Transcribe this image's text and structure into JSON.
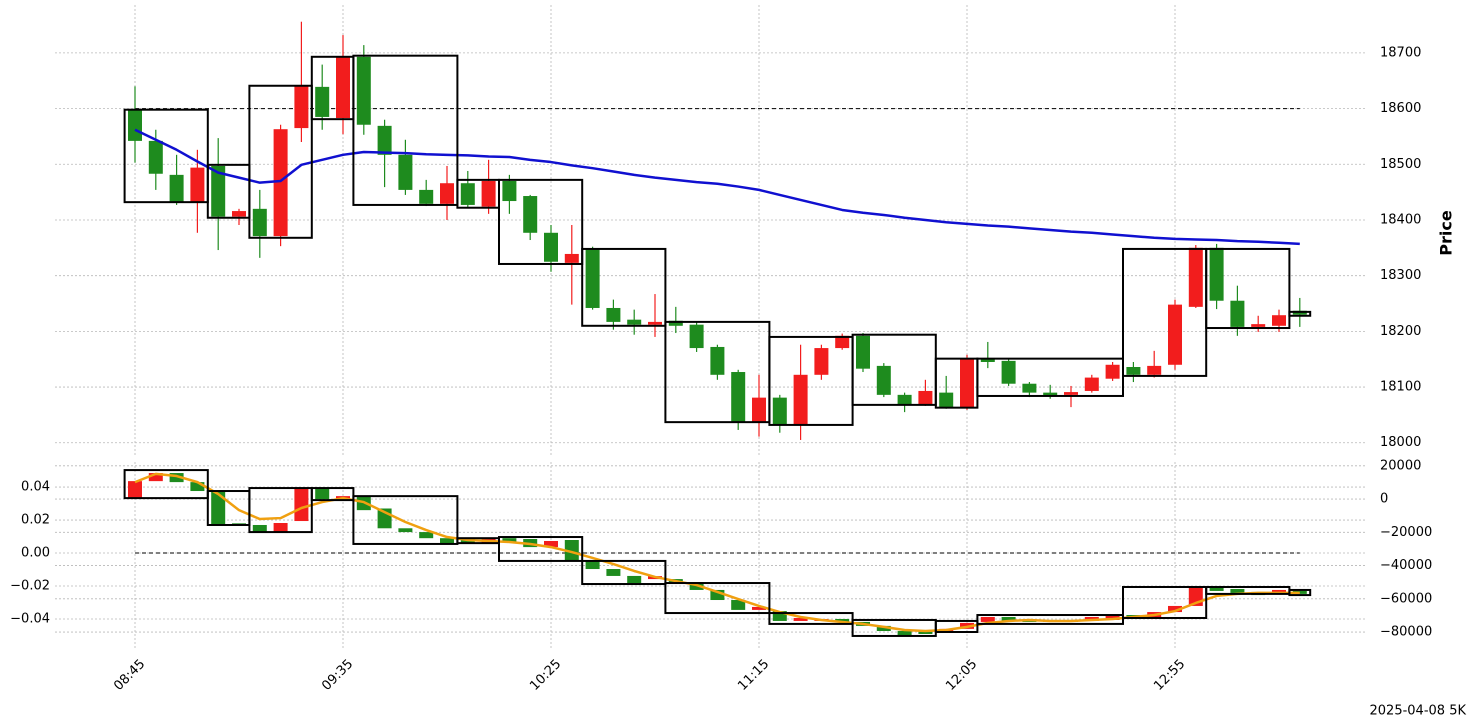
{
  "chart_data": [
    {
      "type": "candlestick",
      "ylabel": "Price",
      "up_color": "#f21d1d",
      "down_color": "#1e8b1e",
      "ylim": [
        17978,
        18786
      ],
      "yticks": [
        18000,
        18100,
        18200,
        18300,
        18400,
        18500,
        18600,
        18700
      ],
      "grid": true,
      "open": [
        18598,
        18542,
        18481,
        18432,
        18497,
        18406,
        18420,
        18371,
        18565,
        18639,
        18583,
        18693,
        18569,
        18517,
        18454,
        18429,
        18466,
        18424,
        18470,
        18443,
        18377,
        18323,
        18348,
        18242,
        18221,
        18212,
        18219,
        18212,
        18172,
        18127,
        18038,
        18081,
        18032,
        18122,
        18170,
        18192,
        18138,
        18086,
        18068,
        18090,
        18064,
        18152,
        18147,
        18106,
        18090,
        18086,
        18093,
        18115,
        18136,
        18122,
        18140,
        18244,
        18350,
        18255,
        18208,
        18210,
        18237
      ],
      "high": [
        18640,
        18562,
        18517,
        18526,
        18547,
        18420,
        18454,
        18571,
        18756,
        18679,
        18732,
        18714,
        18580,
        18544,
        18472,
        18497,
        18488,
        18508,
        18481,
        18445,
        18391,
        18391,
        18352,
        18257,
        18239,
        18267,
        18244,
        18217,
        18176,
        18131,
        18122,
        18086,
        18176,
        18176,
        18196,
        18197,
        18143,
        18090,
        18113,
        18120,
        18158,
        18181,
        18152,
        18109,
        18104,
        18102,
        18122,
        18145,
        18145,
        18165,
        18257,
        18355,
        18357,
        18282,
        18228,
        18239,
        18260
      ],
      "low": [
        18503,
        18454,
        18427,
        18377,
        18346,
        18391,
        18332,
        18353,
        18540,
        18562,
        18554,
        18553,
        18459,
        18445,
        18425,
        18400,
        18422,
        18411,
        18411,
        18364,
        18307,
        18248,
        18239,
        18203,
        18194,
        18190,
        18197,
        18163,
        18113,
        18023,
        18011,
        18018,
        18005,
        18113,
        18167,
        18127,
        18082,
        18055,
        18066,
        18061,
        18059,
        18134,
        18102,
        18082,
        18079,
        18064,
        18090,
        18111,
        18109,
        18117,
        18131,
        18242,
        18240,
        18192,
        18199,
        18199,
        18208
      ],
      "close": [
        18542,
        18483,
        18432,
        18494,
        18406,
        18416,
        18371,
        18563,
        18641,
        18585,
        18693,
        18571,
        18517,
        18454,
        18429,
        18466,
        18427,
        18470,
        18434,
        18377,
        18325,
        18339,
        18242,
        18217,
        18212,
        18217,
        18210,
        18170,
        18122,
        18038,
        18081,
        18032,
        18122,
        18170,
        18192,
        18133,
        18086,
        18068,
        18093,
        18064,
        18151,
        18145,
        18106,
        18090,
        18084,
        18091,
        18117,
        18140,
        18122,
        18138,
        18248,
        18350,
        18255,
        18208,
        18213,
        18229,
        18230
      ],
      "lines": [
        {
          "color": "#1010d0",
          "values": [
            18562,
            18544,
            18526,
            18505,
            18485,
            18476,
            18467,
            18470,
            18499,
            18508,
            18517,
            18522,
            18521,
            18520,
            18518,
            18517,
            18516,
            18514,
            18513,
            18508,
            18504,
            18498,
            18493,
            18487,
            18481,
            18476,
            18472,
            18468,
            18465,
            18460,
            18454,
            18445,
            18436,
            18427,
            18418,
            18413,
            18409,
            18404,
            18400,
            18396,
            18393,
            18390,
            18388,
            18385,
            18382,
            18379,
            18377,
            18374,
            18371,
            18368,
            18366,
            18365,
            18364,
            18362,
            18361,
            18359,
            18357
          ]
        }
      ],
      "hline": 18600,
      "box_color": "#000000",
      "boxes": [
        {
          "start": 0,
          "end": 3,
          "top": 18598,
          "bottom": 18432
        },
        {
          "start": 4,
          "end": 5,
          "top": 18499,
          "bottom": 18404
        },
        {
          "start": 6,
          "end": 8,
          "top": 18641,
          "bottom": 18368
        },
        {
          "start": 9,
          "end": 10,
          "top": 18693,
          "bottom": 18581
        },
        {
          "start": 11,
          "end": 15,
          "top": 18695,
          "bottom": 18427
        },
        {
          "start": 16,
          "end": 17,
          "top": 18472,
          "bottom": 18422
        },
        {
          "start": 18,
          "end": 21,
          "top": 18472,
          "bottom": 18321
        },
        {
          "start": 22,
          "end": 25,
          "top": 18348,
          "bottom": 18210
        },
        {
          "start": 26,
          "end": 30,
          "top": 18217,
          "bottom": 18037
        },
        {
          "start": 31,
          "end": 34,
          "top": 18190,
          "bottom": 18032
        },
        {
          "start": 35,
          "end": 38,
          "top": 18194,
          "bottom": 18068
        },
        {
          "start": 39,
          "end": 40,
          "top": 18151,
          "bottom": 18063
        },
        {
          "start": 41,
          "end": 47,
          "top": 18151,
          "bottom": 18084
        },
        {
          "start": 48,
          "end": 51,
          "top": 18348,
          "bottom": 18120
        },
        {
          "start": 52,
          "end": 55,
          "top": 18348,
          "bottom": 18206
        },
        {
          "start": 56,
          "end": 56,
          "top": 18235,
          "bottom": 18228
        }
      ]
    },
    {
      "type": "candlestick",
      "up_color": "#f21d1d",
      "down_color": "#1e8b1e",
      "categories": [
        "08:45",
        null,
        null,
        null,
        null,
        null,
        null,
        null,
        null,
        null,
        "09:35",
        null,
        null,
        null,
        null,
        null,
        null,
        null,
        null,
        null,
        "10:25",
        null,
        null,
        null,
        null,
        null,
        null,
        null,
        null,
        null,
        "11:15",
        null,
        null,
        null,
        null,
        null,
        null,
        null,
        null,
        null,
        "12:05",
        null,
        null,
        null,
        null,
        null,
        null,
        null,
        null,
        null,
        "12:55",
        null,
        null,
        null,
        null,
        null,
        null
      ],
      "ylim": [
        -0.0576,
        0.0552
      ],
      "yticks": [
        {
          "value": -0.04,
          "label": "−0.04"
        },
        {
          "value": -0.02,
          "label": "−0.02"
        },
        {
          "value": 0,
          "label": "0.00"
        },
        0.02,
        0.04
      ],
      "y2lim": [
        -89600,
        22300
      ],
      "y2ticks": [
        {
          "value": -80000,
          "label": "−80000"
        },
        {
          "value": -60000,
          "label": "−60000"
        },
        {
          "value": -40000,
          "label": "−40000"
        },
        {
          "value": -20000,
          "label": "−20000"
        },
        0,
        20000
      ],
      "grid": true,
      "open": [
        0.0333,
        0.0436,
        0.0485,
        0.043,
        0.0376,
        0.018,
        0.017,
        0.0127,
        0.0194,
        0.0394,
        0.0327,
        0.034,
        0.027,
        0.015,
        0.0127,
        0.009,
        0.0085,
        0.006,
        0.009,
        0.0085,
        0.0036,
        0.0079,
        -0.0048,
        -0.0097,
        -0.0139,
        -0.0158,
        -0.0158,
        -0.0176,
        -0.0224,
        -0.0285,
        -0.0345,
        -0.0352,
        -0.0412,
        -0.0412,
        -0.04,
        -0.0418,
        -0.0442,
        -0.0473,
        -0.0467,
        -0.0479,
        -0.046,
        -0.0418,
        -0.0388,
        -0.0406,
        -0.0406,
        -0.0406,
        -0.0412,
        -0.0406,
        -0.0376,
        -0.0388,
        -0.0358,
        -0.0321,
        -0.0206,
        -0.0218,
        -0.0236,
        -0.0248,
        -0.023
      ],
      "close": [
        0.0436,
        0.0485,
        0.043,
        0.0376,
        0.0176,
        0.017,
        0.0127,
        0.0182,
        0.0394,
        0.0327,
        0.0345,
        0.026,
        0.015,
        0.0127,
        0.009,
        0.006,
        0.006,
        0.0085,
        0.0067,
        0.0036,
        0.0073,
        -0.0048,
        -0.0097,
        -0.0139,
        -0.0182,
        -0.014,
        -0.0176,
        -0.0224,
        -0.0285,
        -0.0345,
        -0.0327,
        -0.0412,
        -0.0394,
        -0.04,
        -0.0418,
        -0.0442,
        -0.0473,
        -0.0503,
        -0.0491,
        -0.046,
        -0.0424,
        -0.0388,
        -0.0412,
        -0.0418,
        -0.0418,
        -0.0418,
        -0.0388,
        -0.0376,
        -0.0388,
        -0.0358,
        -0.0321,
        -0.02,
        -0.023,
        -0.0242,
        -0.0255,
        -0.0224,
        -0.0248
      ],
      "lines": [
        {
          "color": "#f0a010",
          "values": [
            0.043,
            0.048,
            0.0467,
            0.043,
            0.0358,
            0.026,
            0.0206,
            0.0212,
            0.0273,
            0.0309,
            0.0333,
            0.0309,
            0.0248,
            0.0188,
            0.0139,
            0.0097,
            0.0079,
            0.0073,
            0.0067,
            0.0055,
            0.0036,
            0.0006,
            -0.003,
            -0.0067,
            -0.0109,
            -0.0145,
            -0.017,
            -0.0194,
            -0.0236,
            -0.0279,
            -0.0321,
            -0.0358,
            -0.0388,
            -0.0406,
            -0.0418,
            -0.043,
            -0.0448,
            -0.0467,
            -0.0473,
            -0.0467,
            -0.0448,
            -0.0424,
            -0.0412,
            -0.0406,
            -0.0412,
            -0.0412,
            -0.0406,
            -0.04,
            -0.0388,
            -0.0376,
            -0.0352,
            -0.0303,
            -0.026,
            -0.0248,
            -0.0242,
            -0.0242,
            -0.0242
          ]
        }
      ],
      "hline": 0,
      "box_color": "#000000",
      "boxes": [
        {
          "start": 0,
          "end": 3,
          "top": 0.0503,
          "bottom": 0.0333
        },
        {
          "start": 4,
          "end": 5,
          "top": 0.0376,
          "bottom": 0.017
        },
        {
          "start": 6,
          "end": 8,
          "top": 0.0394,
          "bottom": 0.0127
        },
        {
          "start": 9,
          "end": 10,
          "top": 0.0394,
          "bottom": 0.0321
        },
        {
          "start": 11,
          "end": 15,
          "top": 0.0345,
          "bottom": 0.0055
        },
        {
          "start": 16,
          "end": 17,
          "top": 0.009,
          "bottom": 0.006
        },
        {
          "start": 18,
          "end": 21,
          "top": 0.0097,
          "bottom": -0.0048
        },
        {
          "start": 22,
          "end": 25,
          "top": -0.0048,
          "bottom": -0.0188
        },
        {
          "start": 26,
          "end": 30,
          "top": -0.0182,
          "bottom": -0.0364
        },
        {
          "start": 31,
          "end": 34,
          "top": -0.0364,
          "bottom": -0.043
        },
        {
          "start": 35,
          "end": 38,
          "top": -0.0406,
          "bottom": -0.0503
        },
        {
          "start": 39,
          "end": 40,
          "top": -0.0412,
          "bottom": -0.0479
        },
        {
          "start": 41,
          "end": 47,
          "top": -0.0376,
          "bottom": -0.043
        },
        {
          "start": 48,
          "end": 51,
          "top": -0.0206,
          "bottom": -0.0394
        },
        {
          "start": 52,
          "end": 55,
          "top": -0.0206,
          "bottom": -0.0248
        },
        {
          "start": 56,
          "end": 56,
          "top": -0.0224,
          "bottom": -0.0255
        }
      ],
      "footnote": "2025-04-08 5K"
    }
  ]
}
